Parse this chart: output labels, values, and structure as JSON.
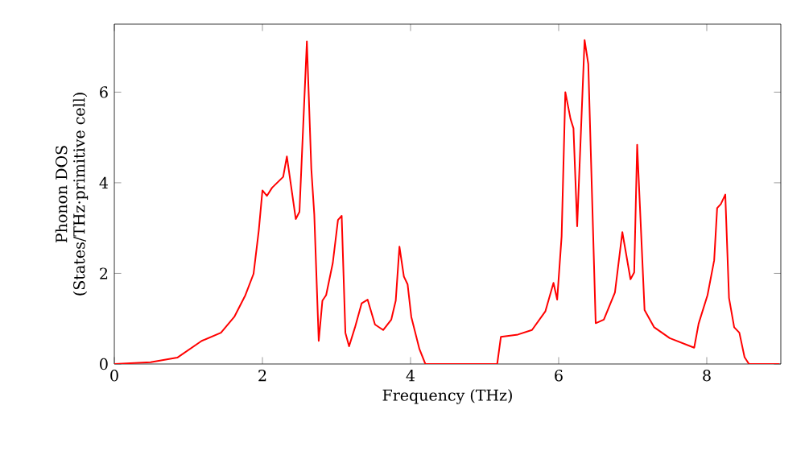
{
  "chart_data": {
    "type": "line",
    "xlabel": "Frequency (THz)",
    "ylabel": "Phonon DOS\n(States/THz·primitive cell)",
    "x": [
      0,
      0.49,
      0.85,
      1.18,
      1.44,
      1.62,
      1.77,
      1.88,
      1.95,
      2.0,
      2.06,
      2.13,
      2.28,
      2.33,
      2.45,
      2.5,
      2.6,
      2.66,
      2.7,
      2.76,
      2.81,
      2.86,
      2.95,
      3.02,
      3.07,
      3.12,
      3.17,
      3.25,
      3.34,
      3.42,
      3.52,
      3.63,
      3.74,
      3.8,
      3.85,
      3.91,
      3.96,
      4.01,
      4.12,
      4.2,
      5.17,
      5.22,
      5.45,
      5.64,
      5.82,
      5.93,
      5.98,
      6.04,
      6.09,
      6.16,
      6.2,
      6.25,
      6.35,
      6.4,
      6.5,
      6.61,
      6.76,
      6.86,
      6.97,
      7.02,
      7.06,
      7.16,
      7.29,
      7.5,
      7.83,
      7.89,
      8.01,
      8.1,
      8.14,
      8.19,
      8.25,
      8.3,
      8.37,
      8.44,
      8.51,
      8.57,
      8.98
    ],
    "series": [
      {
        "color": "#ff0000",
        "values": [
          0,
          0.04,
          0.14,
          0.51,
          0.69,
          1.04,
          1.52,
          1.99,
          2.94,
          3.83,
          3.71,
          3.89,
          4.13,
          4.58,
          3.2,
          3.36,
          7.12,
          4.31,
          3.3,
          0.51,
          1.4,
          1.52,
          2.23,
          3.18,
          3.27,
          0.69,
          0.39,
          0.81,
          1.34,
          1.42,
          0.87,
          0.75,
          0.98,
          1.4,
          2.59,
          1.93,
          1.76,
          1.04,
          0.33,
          0,
          0,
          0.6,
          0.65,
          0.75,
          1.16,
          1.79,
          1.42,
          2.82,
          6.0,
          5.41,
          5.2,
          3.04,
          7.15,
          6.62,
          0.9,
          0.98,
          1.58,
          2.91,
          1.87,
          2.02,
          4.84,
          1.19,
          0.81,
          0.57,
          0.36,
          0.89,
          1.52,
          2.29,
          3.44,
          3.53,
          3.74,
          1.46,
          0.81,
          0.69,
          0.15,
          0,
          0
        ]
      }
    ],
    "xlim": [
      0,
      9
    ],
    "ylim": [
      0,
      7.5
    ],
    "xticks": [
      0,
      2,
      4,
      6,
      8
    ],
    "yticks": [
      0,
      2,
      4,
      6
    ],
    "grid": false,
    "marker": "none",
    "line_style": "solid"
  }
}
